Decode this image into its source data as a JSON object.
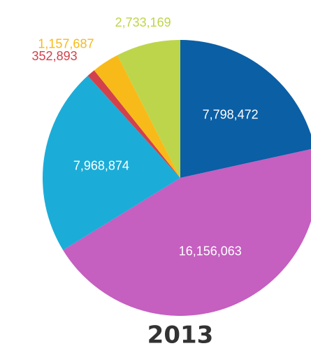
{
  "chart_data": {
    "type": "pie",
    "title": "2013",
    "categories": [
      null,
      null,
      null,
      null,
      null,
      null
    ],
    "values": [
      7798472,
      16156063,
      7968874,
      352893,
      1157687,
      2733169
    ],
    "value_labels": [
      "7,798,472",
      "16,156,063",
      "7,968,874",
      "352,893",
      "1,157,687",
      "2,733,169"
    ],
    "colors": [
      "#0b5fa5",
      "#c55fc0",
      "#1badd8",
      "#d3414b",
      "#f8ba19",
      "#bdd54b"
    ]
  }
}
